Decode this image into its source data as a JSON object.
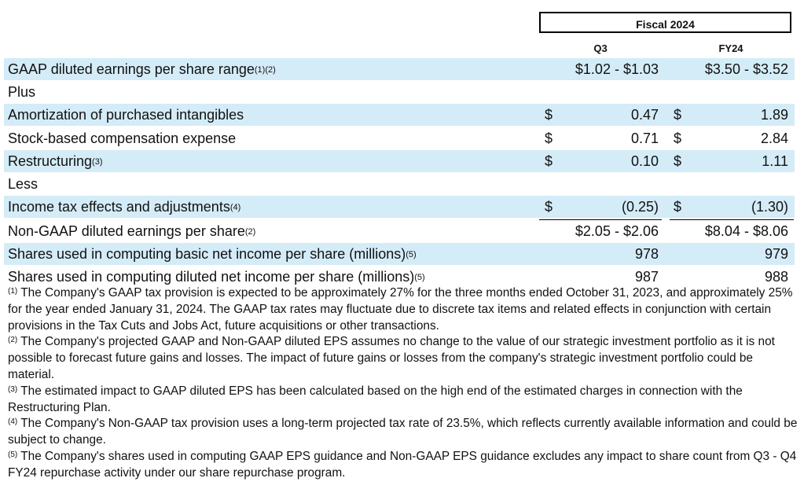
{
  "header": {
    "fiscal": "Fiscal 2024",
    "col_q3": "Q3",
    "col_fy24": "FY24"
  },
  "rows": [
    {
      "label": "GAAP diluted earnings per share range",
      "sup": "(1)(2)",
      "cur1": "",
      "q3": "$1.02 - $1.03",
      "cur2": "",
      "fy24": "$3.50 - $3.52"
    },
    {
      "label": "Plus",
      "sup": "",
      "cur1": "",
      "q3": "",
      "cur2": "",
      "fy24": ""
    },
    {
      "label": "Amortization of purchased intangibles",
      "sup": "",
      "cur1": "$",
      "q3": "0.47",
      "cur2": "$",
      "fy24": "1.89"
    },
    {
      "label": "Stock-based compensation expense",
      "sup": "",
      "cur1": "$",
      "q3": "0.71",
      "cur2": "$",
      "fy24": "2.84"
    },
    {
      "label": "Restructuring",
      "sup": "(3)",
      "cur1": "$",
      "q3": "0.10",
      "cur2": "$",
      "fy24": "1.11"
    },
    {
      "label": "Less",
      "sup": "",
      "cur1": "",
      "q3": "",
      "cur2": "",
      "fy24": ""
    },
    {
      "label": "Income tax effects and adjustments",
      "sup": "(4)",
      "cur1": "$",
      "q3": "(0.25)",
      "cur2": "$",
      "fy24": "(1.30)"
    },
    {
      "label": "Non-GAAP diluted earnings per share",
      "sup": "(2)",
      "cur1": "",
      "q3": "$2.05 - $2.06",
      "cur2": "",
      "fy24": "$8.04 - $8.06"
    },
    {
      "label": "Shares used in computing basic net income per share (millions)",
      "sup": "(5)",
      "cur1": "",
      "q3": "978",
      "cur2": "",
      "fy24": "979"
    },
    {
      "label": "Shares used in computing diluted net income per share (millions)",
      "sup": "(5)",
      "cur1": "",
      "q3": "987",
      "cur2": "",
      "fy24": "988"
    }
  ],
  "footnotes": [
    {
      "sup": "(1)",
      "text": " The Company's GAAP tax provision is expected to be approximately 27% for the three months ended October 31, 2023, and approximately 25% for the year ended January 31, 2024. The GAAP tax rates may fluctuate due to discrete tax items and related effects in conjunction with certain provisions in the Tax Cuts and Jobs Act, future acquisitions or other transactions."
    },
    {
      "sup": "(2)",
      "text": " The Company's projected GAAP and Non-GAAP diluted EPS assumes no change to the value of our strategic investment portfolio as it is not possible to forecast future gains and losses. The impact of future gains or losses from the company's strategic investment portfolio could be material."
    },
    {
      "sup": "(3)",
      "text": " The estimated impact to GAAP diluted EPS has been calculated based on the high end of the estimated charges in connection with the Restructuring Plan."
    },
    {
      "sup": "(4)",
      "text": " The Company's Non-GAAP tax provision uses a long-term projected tax rate of 23.5%, which reflects currently available information and could be subject to change."
    },
    {
      "sup": "(5)",
      "text": " The Company's shares used in computing GAAP EPS guidance and Non-GAAP EPS guidance excludes any impact to share count from Q3 - Q4 FY24 repurchase activity under our share repurchase program."
    }
  ]
}
